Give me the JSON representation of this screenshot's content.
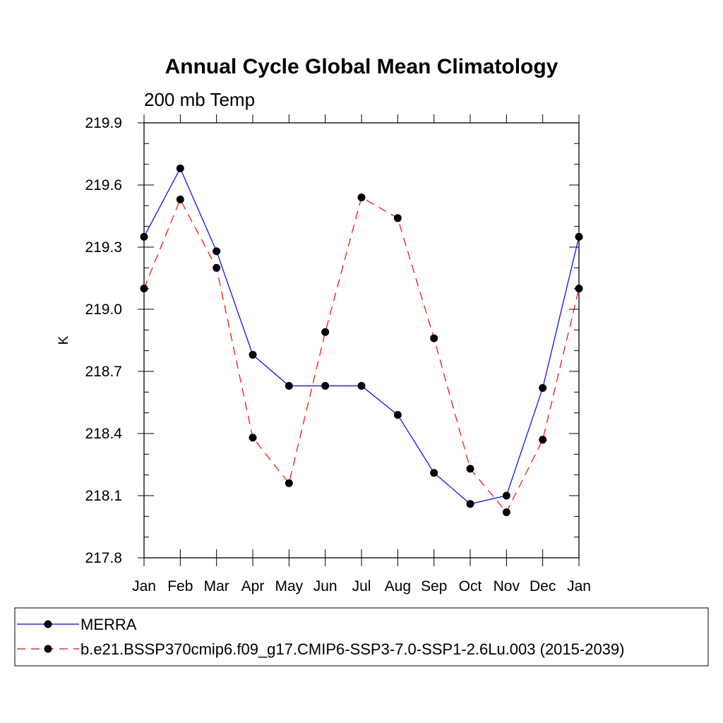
{
  "chart_data": {
    "type": "line",
    "title": "Annual Cycle Global Mean Climatology",
    "subtitle": "200 mb Temp",
    "xlabel": "",
    "ylabel": "K",
    "categories": [
      "Jan",
      "Feb",
      "Mar",
      "Apr",
      "May",
      "Jun",
      "Jul",
      "Aug",
      "Sep",
      "Oct",
      "Nov",
      "Dec",
      "Jan"
    ],
    "ylim": [
      217.8,
      219.9
    ],
    "yticks": [
      "217.8",
      "218.1",
      "218.4",
      "218.7",
      "219.0",
      "219.3",
      "219.6",
      "219.9"
    ],
    "series": [
      {
        "name": "MERRA",
        "color": "#0000ff",
        "dash": "solid",
        "values": [
          219.35,
          219.68,
          219.28,
          218.78,
          218.63,
          218.63,
          218.63,
          218.49,
          218.21,
          218.06,
          218.1,
          218.62,
          219.35
        ]
      },
      {
        "name": "b.e21.BSSP370cmip6.f09_g17.CMIP6-SSP3-7.0-SSP1-2.6Lu.003 (2015-2039)",
        "color": "#ff0000",
        "dash": "dashed",
        "values": [
          219.1,
          219.53,
          219.2,
          218.38,
          218.16,
          218.89,
          219.54,
          219.44,
          218.86,
          218.23,
          218.02,
          218.37,
          219.1
        ]
      }
    ],
    "legend_position": "bottom"
  }
}
